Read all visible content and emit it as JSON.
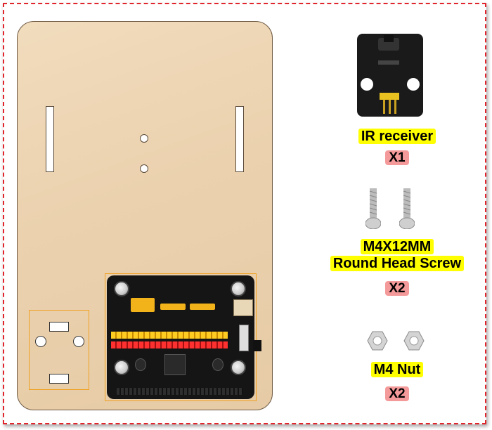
{
  "components": [
    {
      "name": "IR receiver",
      "quantity": "X1",
      "icon": "ir-receiver-module-icon"
    },
    {
      "name_line1": "M4X12MM",
      "name_line2": "Round Head Screw",
      "quantity": "X2",
      "icon": "round-head-screw-icon"
    },
    {
      "name": "M4 Nut",
      "quantity": "X2",
      "icon": "hex-nut-icon"
    }
  ],
  "colors": {
    "frame_border": "#e0262c",
    "label_highlight": "#ffff00",
    "quantity_highlight": "#f59a9a",
    "wood_panel": "#ebd1ae",
    "pcb": "#151515"
  }
}
